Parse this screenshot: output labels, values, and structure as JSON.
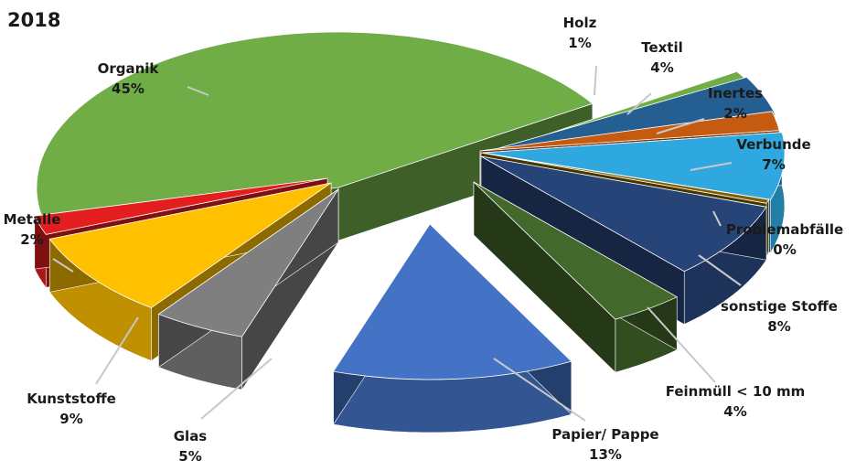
{
  "chart_data": {
    "type": "pie",
    "title": "2018",
    "slices": [
      {
        "label": "Organik",
        "value": 45,
        "value_label": "45%",
        "color": "#70ad47"
      },
      {
        "label": "Holz",
        "value": 1,
        "value_label": "1%",
        "color": "#70ad47"
      },
      {
        "label": "Textil",
        "value": 4,
        "value_label": "4%",
        "color": "#255e91"
      },
      {
        "label": "Inertes",
        "value": 2,
        "value_label": "2%",
        "color": "#c55a11"
      },
      {
        "label": "Verbunde",
        "value": 7,
        "value_label": "7%",
        "color": "#2ea8df"
      },
      {
        "label": "Problemabfälle",
        "value": 0,
        "value_label": "0%",
        "color": "#7f6000"
      },
      {
        "label": "sonstige Stoffe",
        "value": 8,
        "value_label": "8%",
        "color": "#264478"
      },
      {
        "label": "Feinmüll < 10 mm",
        "value": 4,
        "value_label": "4%",
        "color": "#43682b"
      },
      {
        "label": "Papier/ Pappe",
        "value": 13,
        "value_label": "13%",
        "color": "#4472c4"
      },
      {
        "label": "Glas",
        "value": 5,
        "value_label": "5%",
        "color": "#7f7f7f"
      },
      {
        "label": "Kunststoffe",
        "value": 9,
        "value_label": "9%",
        "color": "#ffc000"
      },
      {
        "label": "Metalle",
        "value": 2,
        "value_label": "2%",
        "color": "#e41e1e"
      }
    ]
  }
}
